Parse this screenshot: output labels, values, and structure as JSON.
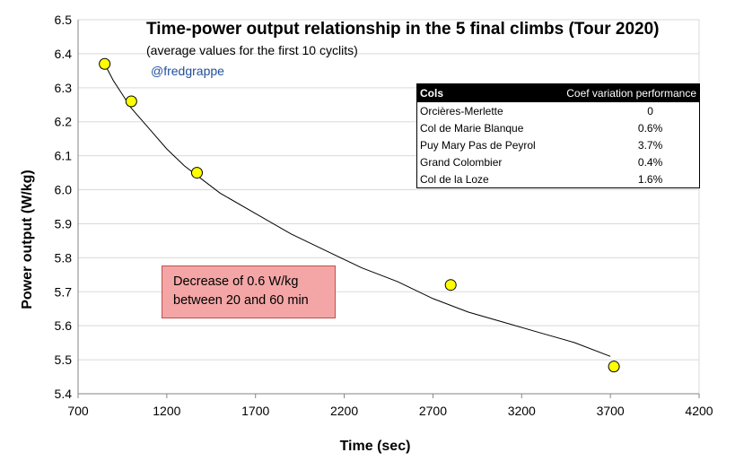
{
  "chart_data": {
    "type": "scatter",
    "title": "Time-power output relationship in the 5 final climbs (Tour 2020)",
    "subtitle": "(average values for the first 10 cyclits)",
    "handle": "@fredgrappe",
    "xlabel": "Time (sec)",
    "ylabel": "Power output (W/kg)",
    "xlim": [
      700,
      4200
    ],
    "ylim": [
      5.4,
      6.5
    ],
    "xticks": [
      700,
      1200,
      1700,
      2200,
      2700,
      3200,
      3700,
      4200
    ],
    "yticks": [
      "5.4",
      "5.5",
      "5.6",
      "5.7",
      "5.8",
      "5.9",
      "6.0",
      "6.1",
      "6.2",
      "6.3",
      "6.4",
      "6.5"
    ],
    "grid": "horizontal",
    "points": [
      {
        "x": 850,
        "y": 6.37
      },
      {
        "x": 1000,
        "y": 6.26
      },
      {
        "x": 1370,
        "y": 6.05
      },
      {
        "x": 2800,
        "y": 5.72
      },
      {
        "x": 3720,
        "y": 5.48
      }
    ],
    "trendline": {
      "type": "power",
      "x": [
        860,
        900,
        950,
        1000,
        1100,
        1200,
        1300,
        1400,
        1500,
        1700,
        1900,
        2100,
        2300,
        2500,
        2700,
        2900,
        3100,
        3300,
        3500,
        3700
      ],
      "y": [
        6.36,
        6.32,
        6.28,
        6.24,
        6.18,
        6.12,
        6.07,
        6.03,
        5.99,
        5.93,
        5.87,
        5.82,
        5.77,
        5.73,
        5.68,
        5.64,
        5.61,
        5.58,
        5.55,
        5.51
      ]
    },
    "marker_color": "#ffff00",
    "marker_edge_color": "#000000"
  },
  "table": {
    "header": {
      "col": "Cols",
      "coef": "Coef variation performance"
    },
    "rows": [
      {
        "col": "Orcières-Merlette",
        "coef": "0"
      },
      {
        "col": "Col de Marie Blanque",
        "coef": "0.6%"
      },
      {
        "col": "Puy Mary Pas de Peyrol",
        "coef": "3.7%"
      },
      {
        "col": "Grand Colombier",
        "coef": "0.4%"
      },
      {
        "col": "Col de la Loze",
        "coef": "1.6%"
      }
    ]
  },
  "note": {
    "line1": "Decrease of  0.6 W/kg",
    "line2": "between 20 and 60 min",
    "bg_color": "#f4a6a6",
    "border_color": "#c0504d"
  }
}
